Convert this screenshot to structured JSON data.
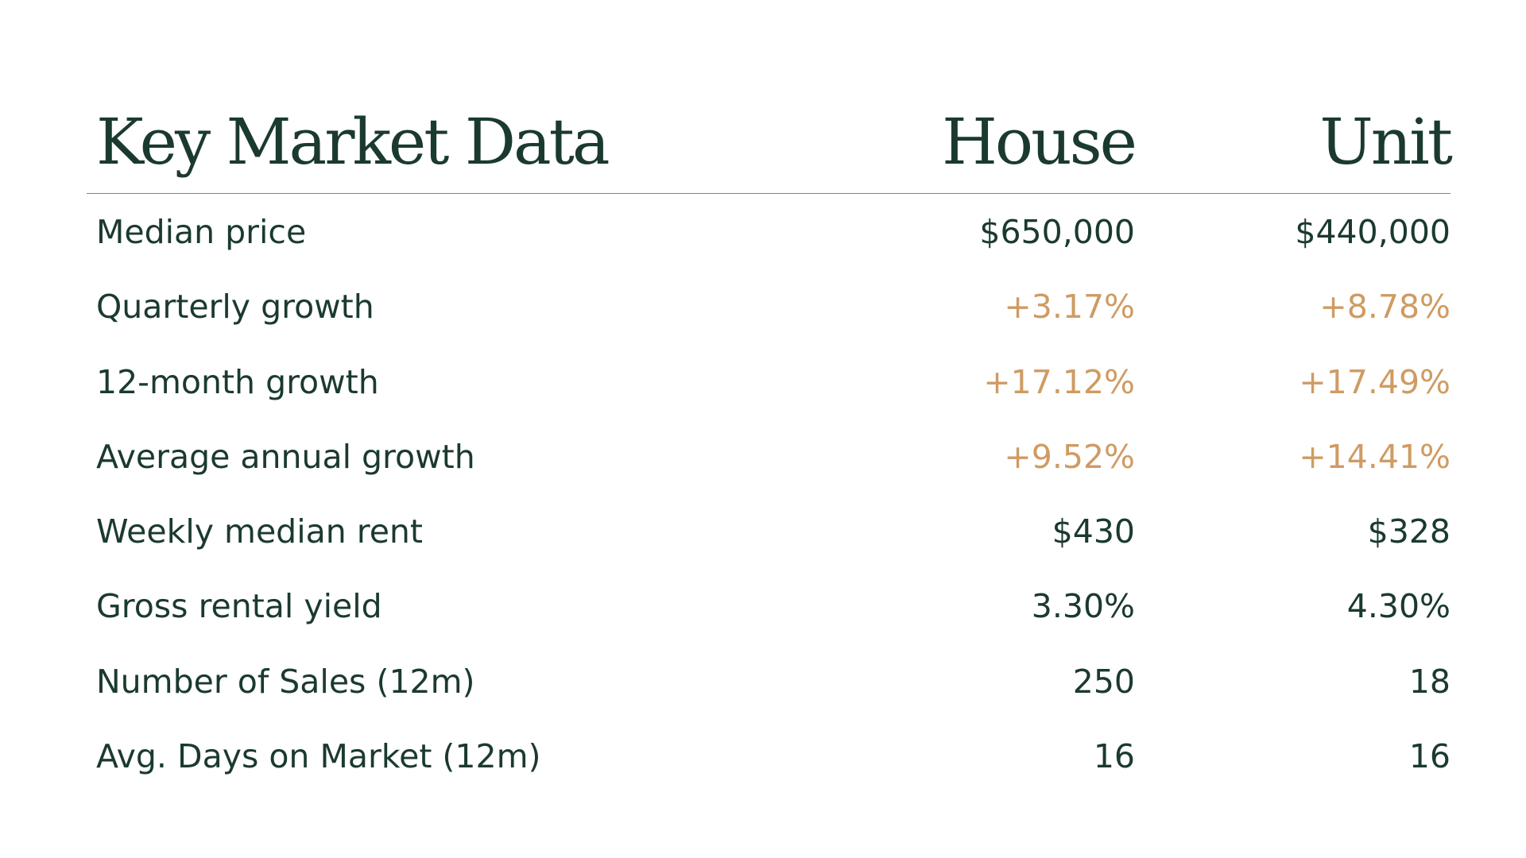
{
  "header": {
    "title": "Key Market Data",
    "col_house": "House",
    "col_unit": "Unit"
  },
  "accent_color": "#cf9b63",
  "text_color": "#1b3a2f",
  "rows": [
    {
      "label": "Median price",
      "house": "$650,000",
      "unit": "$440,000",
      "accent": false
    },
    {
      "label": "Quarterly growth",
      "house": "+3.17%",
      "unit": "+8.78%",
      "accent": true
    },
    {
      "label": "12-month growth",
      "house": "+17.12%",
      "unit": "+17.49%",
      "accent": true
    },
    {
      "label": "Average annual growth",
      "house": "+9.52%",
      "unit": "+14.41%",
      "accent": true
    },
    {
      "label": "Weekly median rent",
      "house": "$430",
      "unit": "$328",
      "accent": false
    },
    {
      "label": "Gross rental yield",
      "house": "3.30%",
      "unit": "4.30%",
      "accent": false
    },
    {
      "label": "Number of Sales (12m)",
      "house": "250",
      "unit": "18",
      "accent": false
    },
    {
      "label": "Avg. Days on Market (12m)",
      "house": "16",
      "unit": "16",
      "accent": false
    }
  ]
}
